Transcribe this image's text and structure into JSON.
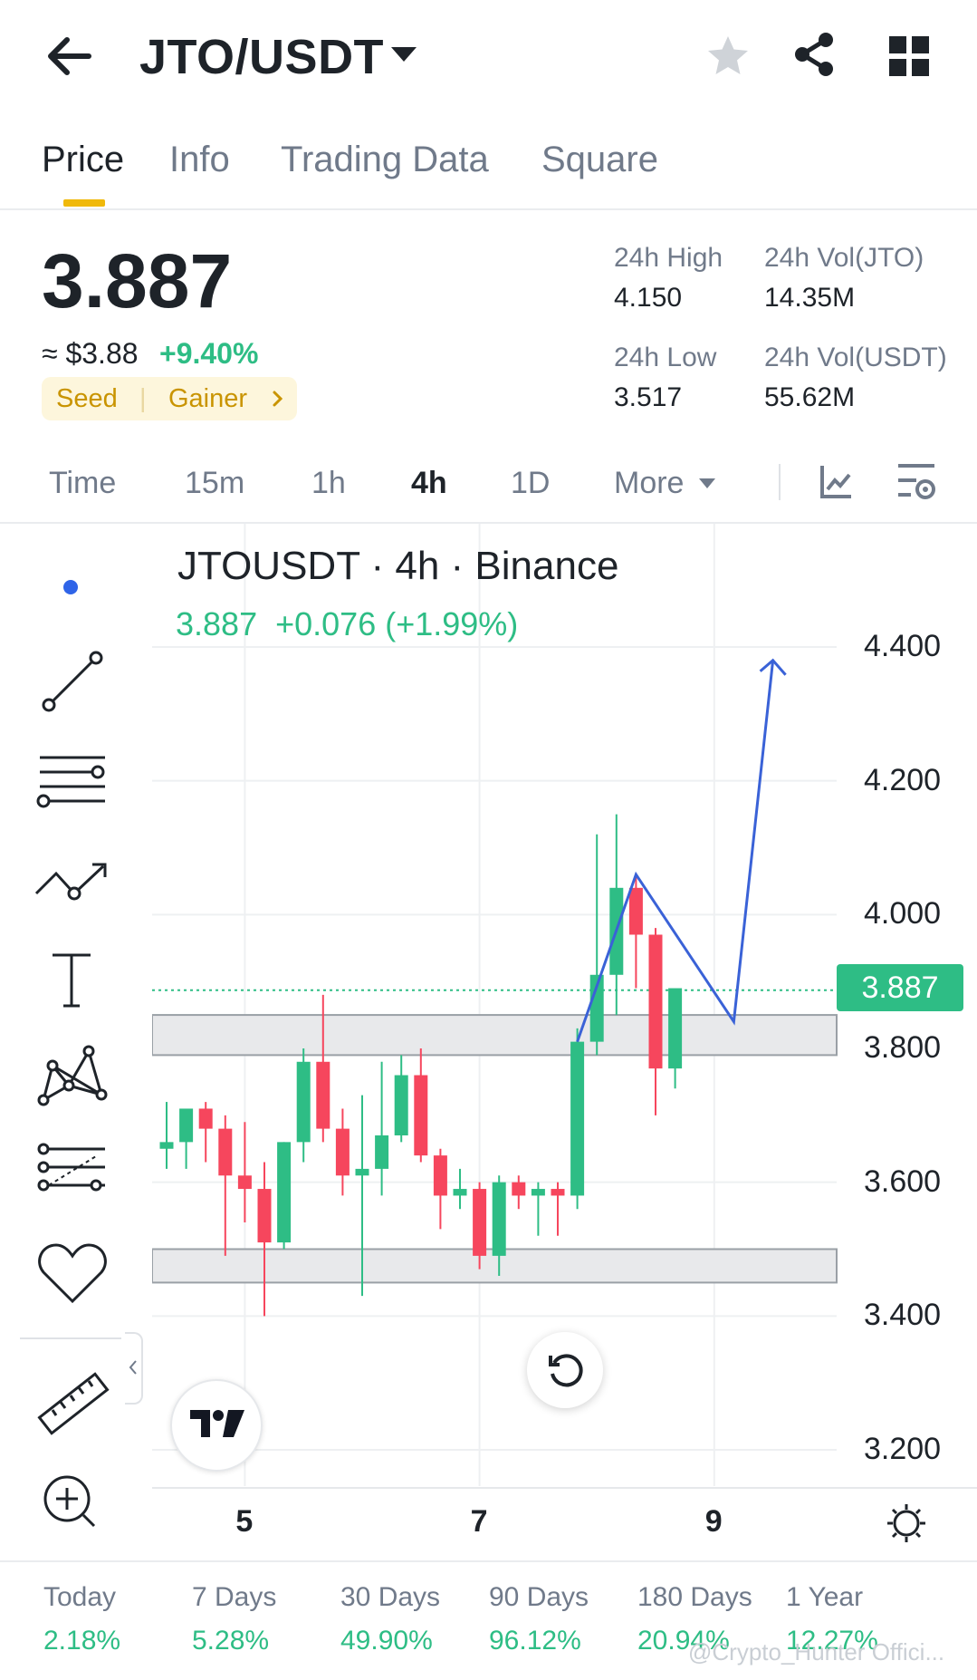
{
  "header": {
    "back_icon": "arrow-left-icon",
    "pair": "JTO/USDT",
    "dropdown_icon": "caret-down-icon",
    "favorite_icon": "star-icon",
    "share_icon": "share-icon",
    "menu_icon": "grid-icon"
  },
  "tabs": [
    {
      "label": "Price",
      "active": true
    },
    {
      "label": "Info",
      "active": false
    },
    {
      "label": "Trading Data",
      "active": false
    },
    {
      "label": "Square",
      "active": false
    }
  ],
  "ticker": {
    "price": "3.887",
    "usd_value": "≈ $3.88",
    "change": "+9.40%",
    "tags": [
      "Seed",
      "Gainer"
    ],
    "high_label": "24h High",
    "high_value": "4.150",
    "low_label": "24h Low",
    "low_value": "3.517",
    "vol_base_label": "24h Vol(JTO)",
    "vol_base_value": "14.35M",
    "vol_quote_label": "24h Vol(USDT)",
    "vol_quote_value": "55.62M"
  },
  "timeframes": [
    {
      "label": "Time",
      "active": false
    },
    {
      "label": "15m",
      "active": false
    },
    {
      "label": "1h",
      "active": false
    },
    {
      "label": "4h",
      "active": true
    },
    {
      "label": "1D",
      "active": false
    },
    {
      "label": "More",
      "active": false
    }
  ],
  "chart": {
    "title": "JTOUSDT · 4h · Binance",
    "last": "3.887",
    "change": "+0.076 (+1.99%)",
    "price_tag": "3.887",
    "logo_text": "TV"
  },
  "chart_data": {
    "type": "candlestick",
    "symbol": "JTOUSDT",
    "interval": "4h",
    "exchange": "Binance",
    "y_ticks": [
      "4.400",
      "4.200",
      "4.000",
      "3.800",
      "3.600",
      "3.400",
      "3.200"
    ],
    "ylim": [
      3.15,
      4.45
    ],
    "x_ticks": [
      {
        "label": "5",
        "index": 4
      },
      {
        "label": "7",
        "index": 16
      },
      {
        "label": "9",
        "index": 28
      }
    ],
    "last_price": 3.887,
    "support_zones": [
      [
        3.79,
        3.85
      ],
      [
        3.45,
        3.5
      ]
    ],
    "projection": [
      [
        21,
        3.81
      ],
      [
        24,
        4.06
      ],
      [
        29,
        3.84
      ],
      [
        31,
        4.38
      ]
    ],
    "candles": [
      {
        "o": 3.65,
        "h": 3.72,
        "l": 3.62,
        "c": 3.66
      },
      {
        "o": 3.66,
        "h": 3.7,
        "l": 3.62,
        "c": 3.71
      },
      {
        "o": 3.71,
        "h": 3.72,
        "l": 3.63,
        "c": 3.68
      },
      {
        "o": 3.68,
        "h": 3.7,
        "l": 3.49,
        "c": 3.61
      },
      {
        "o": 3.61,
        "h": 3.69,
        "l": 3.54,
        "c": 3.59
      },
      {
        "o": 3.59,
        "h": 3.63,
        "l": 3.4,
        "c": 3.51
      },
      {
        "o": 3.51,
        "h": 3.66,
        "l": 3.5,
        "c": 3.66
      },
      {
        "o": 3.66,
        "h": 3.8,
        "l": 3.63,
        "c": 3.78
      },
      {
        "o": 3.78,
        "h": 3.88,
        "l": 3.66,
        "c": 3.68
      },
      {
        "o": 3.68,
        "h": 3.71,
        "l": 3.58,
        "c": 3.61
      },
      {
        "o": 3.61,
        "h": 3.73,
        "l": 3.43,
        "c": 3.62
      },
      {
        "o": 3.62,
        "h": 3.78,
        "l": 3.58,
        "c": 3.67
      },
      {
        "o": 3.67,
        "h": 3.79,
        "l": 3.66,
        "c": 3.76
      },
      {
        "o": 3.76,
        "h": 3.8,
        "l": 3.63,
        "c": 3.64
      },
      {
        "o": 3.64,
        "h": 3.65,
        "l": 3.53,
        "c": 3.58
      },
      {
        "o": 3.58,
        "h": 3.62,
        "l": 3.56,
        "c": 3.59
      },
      {
        "o": 3.59,
        "h": 3.6,
        "l": 3.47,
        "c": 3.49
      },
      {
        "o": 3.49,
        "h": 3.61,
        "l": 3.46,
        "c": 3.6
      },
      {
        "o": 3.6,
        "h": 3.61,
        "l": 3.56,
        "c": 3.58
      },
      {
        "o": 3.58,
        "h": 3.6,
        "l": 3.52,
        "c": 3.59
      },
      {
        "o": 3.59,
        "h": 3.6,
        "l": 3.52,
        "c": 3.58
      },
      {
        "o": 3.58,
        "h": 3.83,
        "l": 3.56,
        "c": 3.81
      },
      {
        "o": 3.81,
        "h": 4.12,
        "l": 3.79,
        "c": 3.91
      },
      {
        "o": 3.91,
        "h": 4.15,
        "l": 3.85,
        "c": 4.04
      },
      {
        "o": 4.04,
        "h": 4.06,
        "l": 3.89,
        "c": 3.97
      },
      {
        "o": 3.97,
        "h": 3.98,
        "l": 3.7,
        "c": 3.77
      },
      {
        "o": 3.77,
        "h": 3.88,
        "l": 3.74,
        "c": 3.89
      }
    ]
  },
  "bottom_bar": {
    "settings_icon": "gear-icon"
  },
  "performance": [
    {
      "label": "Today",
      "value": "2.18%"
    },
    {
      "label": "7 Days",
      "value": "5.28%"
    },
    {
      "label": "30 Days",
      "value": "49.90%"
    },
    {
      "label": "90 Days",
      "value": "96.12%"
    },
    {
      "label": "180 Days",
      "value": "20.94%"
    },
    {
      "label": "1 Year",
      "value": "12.27%"
    }
  ],
  "watermark": "@Crypto_Hunter Offici...",
  "colors": {
    "up": "#2ebd85",
    "down": "#f6465d",
    "accent": "#f0b90b",
    "projection": "#3a62d7"
  }
}
